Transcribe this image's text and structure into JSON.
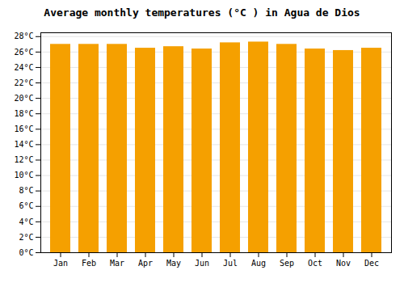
{
  "chart_data": {
    "type": "bar",
    "title": "Average monthly temperatures (°C ) in Agua de Dios",
    "categories": [
      "Jan",
      "Feb",
      "Mar",
      "Apr",
      "May",
      "Jun",
      "Jul",
      "Aug",
      "Sep",
      "Oct",
      "Nov",
      "Dec"
    ],
    "values": [
      27.0,
      27.0,
      27.0,
      26.5,
      26.7,
      26.4,
      27.2,
      27.3,
      27.0,
      26.4,
      26.2,
      26.5
    ],
    "color": "#F5A000",
    "ylim": [
      0,
      28.5
    ],
    "yticks": [
      {
        "value": 0,
        "label": "0°C"
      },
      {
        "value": 2,
        "label": "2°C"
      },
      {
        "value": 4,
        "label": "4°C"
      },
      {
        "value": 6,
        "label": "6°C"
      },
      {
        "value": 8,
        "label": "8°C"
      },
      {
        "value": 10,
        "label": "10°C"
      },
      {
        "value": 12,
        "label": "12°C"
      },
      {
        "value": 14,
        "label": "14°C"
      },
      {
        "value": 16,
        "label": "16°C"
      },
      {
        "value": 18,
        "label": "18°C"
      },
      {
        "value": 20,
        "label": "20°C"
      },
      {
        "value": 22,
        "label": "22°C"
      },
      {
        "value": 24,
        "label": "24°C"
      },
      {
        "value": 26,
        "label": "26°C"
      },
      {
        "value": 28,
        "label": "28°C"
      }
    ],
    "grid": true
  }
}
